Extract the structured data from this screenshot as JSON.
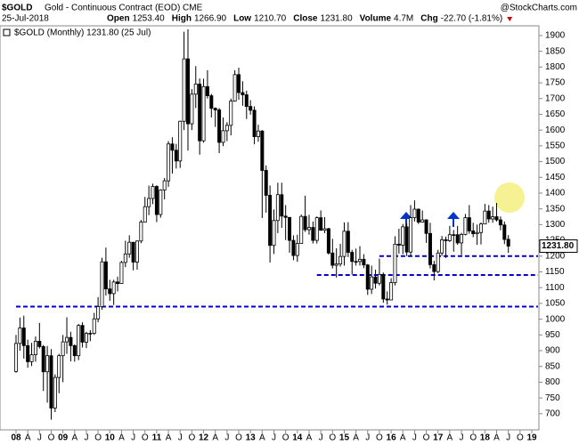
{
  "header": {
    "symbol": "$GOLD",
    "name": "Gold - Continuous Contract (EOD) CME",
    "watermark": "@StockCharts.com",
    "date": "25-Jul-2018",
    "stats": [
      {
        "label": "Open",
        "value": "1253.40"
      },
      {
        "label": "High",
        "value": "1266.90"
      },
      {
        "label": "Low",
        "value": "1210.70"
      },
      {
        "label": "Close",
        "value": "1231.80"
      },
      {
        "label": "Volume",
        "value": "4.7M"
      },
      {
        "label": "Chg",
        "value": "-22.70 (-1.81%)"
      }
    ]
  },
  "chart_data": {
    "type": "candlestick",
    "legend": "$GOLD (Monthly) 1231.80 (25 Jul)",
    "last_label": "1231.80",
    "xlim": [
      "2008-01",
      "2019-01"
    ],
    "ylim": [
      660,
      1945
    ],
    "yticks": [
      700,
      750,
      800,
      850,
      900,
      950,
      1000,
      1050,
      1100,
      1150,
      1200,
      1250,
      1300,
      1350,
      1400,
      1450,
      1500,
      1550,
      1600,
      1650,
      1700,
      1750,
      1800,
      1850,
      1900
    ],
    "xticks": [
      {
        "value": "2008-01",
        "label": "08"
      },
      {
        "value": "2008-04",
        "label": "A"
      },
      {
        "value": "2008-07",
        "label": "J"
      },
      {
        "value": "2008-10",
        "label": "O"
      },
      {
        "value": "2009-01",
        "label": "09"
      },
      {
        "value": "2009-04",
        "label": "A"
      },
      {
        "value": "2009-07",
        "label": "J"
      },
      {
        "value": "2009-10",
        "label": "O"
      },
      {
        "value": "2010-01",
        "label": "10"
      },
      {
        "value": "2010-04",
        "label": "A"
      },
      {
        "value": "2010-07",
        "label": "J"
      },
      {
        "value": "2010-10",
        "label": "O"
      },
      {
        "value": "2011-01",
        "label": "11"
      },
      {
        "value": "2011-04",
        "label": "A"
      },
      {
        "value": "2011-07",
        "label": "J"
      },
      {
        "value": "2011-10",
        "label": "O"
      },
      {
        "value": "2012-01",
        "label": "12"
      },
      {
        "value": "2012-04",
        "label": "A"
      },
      {
        "value": "2012-07",
        "label": "J"
      },
      {
        "value": "2012-10",
        "label": "O"
      },
      {
        "value": "2013-01",
        "label": "13"
      },
      {
        "value": "2013-04",
        "label": "A"
      },
      {
        "value": "2013-07",
        "label": "J"
      },
      {
        "value": "2013-10",
        "label": "O"
      },
      {
        "value": "2014-01",
        "label": "14"
      },
      {
        "value": "2014-04",
        "label": "A"
      },
      {
        "value": "2014-07",
        "label": "J"
      },
      {
        "value": "2014-10",
        "label": "O"
      },
      {
        "value": "2015-01",
        "label": "15"
      },
      {
        "value": "2015-04",
        "label": "A"
      },
      {
        "value": "2015-07",
        "label": "J"
      },
      {
        "value": "2015-10",
        "label": "O"
      },
      {
        "value": "2016-01",
        "label": "16"
      },
      {
        "value": "2016-04",
        "label": "A"
      },
      {
        "value": "2016-07",
        "label": "J"
      },
      {
        "value": "2016-10",
        "label": "O"
      },
      {
        "value": "2017-01",
        "label": "17"
      },
      {
        "value": "2017-04",
        "label": "A"
      },
      {
        "value": "2017-07",
        "label": "J"
      },
      {
        "value": "2017-10",
        "label": "O"
      },
      {
        "value": "2018-01",
        "label": "18"
      },
      {
        "value": "2018-04",
        "label": "A"
      },
      {
        "value": "2018-07",
        "label": "J"
      },
      {
        "value": "2018-10",
        "label": "O"
      },
      {
        "value": "2019-01",
        "label": "19"
      }
    ],
    "levels": [
      {
        "value": 1040,
        "start": "2008-01"
      },
      {
        "value": 1140,
        "start": "2014-06"
      },
      {
        "value": 1200,
        "start": "2015-10"
      }
    ],
    "level_color": "#0000cc",
    "up_color": "#ffffff",
    "down_color": "#000000",
    "x": [
      "2008-01",
      "2008-02",
      "2008-03",
      "2008-04",
      "2008-05",
      "2008-06",
      "2008-07",
      "2008-08",
      "2008-09",
      "2008-10",
      "2008-11",
      "2008-12",
      "2009-01",
      "2009-02",
      "2009-03",
      "2009-04",
      "2009-05",
      "2009-06",
      "2009-07",
      "2009-08",
      "2009-09",
      "2009-10",
      "2009-11",
      "2009-12",
      "2010-01",
      "2010-02",
      "2010-03",
      "2010-04",
      "2010-05",
      "2010-06",
      "2010-07",
      "2010-08",
      "2010-09",
      "2010-10",
      "2010-11",
      "2010-12",
      "2011-01",
      "2011-02",
      "2011-03",
      "2011-04",
      "2011-05",
      "2011-06",
      "2011-07",
      "2011-08",
      "2011-09",
      "2011-10",
      "2011-11",
      "2011-12",
      "2012-01",
      "2012-02",
      "2012-03",
      "2012-04",
      "2012-05",
      "2012-06",
      "2012-07",
      "2012-08",
      "2012-09",
      "2012-10",
      "2012-11",
      "2012-12",
      "2013-01",
      "2013-02",
      "2013-03",
      "2013-04",
      "2013-05",
      "2013-06",
      "2013-07",
      "2013-08",
      "2013-09",
      "2013-10",
      "2013-11",
      "2013-12",
      "2014-01",
      "2014-02",
      "2014-03",
      "2014-04",
      "2014-05",
      "2014-06",
      "2014-07",
      "2014-08",
      "2014-09",
      "2014-10",
      "2014-11",
      "2014-12",
      "2015-01",
      "2015-02",
      "2015-03",
      "2015-04",
      "2015-05",
      "2015-06",
      "2015-07",
      "2015-08",
      "2015-09",
      "2015-10",
      "2015-11",
      "2015-12",
      "2016-01",
      "2016-02",
      "2016-03",
      "2016-04",
      "2016-05",
      "2016-06",
      "2016-07",
      "2016-08",
      "2016-09",
      "2016-10",
      "2016-11",
      "2016-12",
      "2017-01",
      "2017-02",
      "2017-03",
      "2017-04",
      "2017-05",
      "2017-06",
      "2017-07",
      "2017-08",
      "2017-09",
      "2017-10",
      "2017-11",
      "2017-12",
      "2018-01",
      "2018-02",
      "2018-03",
      "2018-04",
      "2018-05",
      "2018-06",
      "2018-07"
    ],
    "open": [
      834,
      923,
      972,
      916,
      865,
      887,
      930,
      913,
      833,
      884,
      718,
      815,
      884,
      928,
      942,
      916,
      884,
      980,
      927,
      955,
      955,
      1001,
      1040,
      1182,
      1096,
      1081,
      1118,
      1113,
      1180,
      1207,
      1244,
      1181,
      1248,
      1308,
      1357,
      1383,
      1421,
      1332,
      1410,
      1439,
      1556,
      1536,
      1502,
      1628,
      1826,
      1620,
      1714,
      1746,
      1566,
      1738,
      1709,
      1669,
      1664,
      1561,
      1598,
      1615,
      1692,
      1776,
      1719,
      1712,
      1675,
      1663,
      1579,
      1597,
      1472,
      1393,
      1234,
      1313,
      1395,
      1327,
      1323,
      1250,
      1202,
      1240,
      1326,
      1284,
      1291,
      1250,
      1322,
      1282,
      1287,
      1210,
      1171,
      1175,
      1199,
      1279,
      1212,
      1183,
      1183,
      1190,
      1172,
      1095,
      1134,
      1114,
      1142,
      1064,
      1061,
      1116,
      1238,
      1235,
      1293,
      1213,
      1322,
      1349,
      1308,
      1315,
      1272,
      1173,
      1151,
      1210,
      1252,
      1249,
      1268,
      1268,
      1242,
      1269,
      1322,
      1280,
      1271,
      1275,
      1302,
      1343,
      1318,
      1325,
      1315,
      1299,
      1253.4
    ],
    "high": [
      950,
      1005,
      1011,
      935,
      925,
      945,
      988,
      918,
      915,
      905,
      825,
      890,
      950,
      1006,
      960,
      920,
      985,
      990,
      960,
      965,
      1020,
      1070,
      1195,
      1227,
      1125,
      1125,
      1135,
      1185,
      1249,
      1266,
      1245,
      1250,
      1315,
      1388,
      1424,
      1430,
      1425,
      1412,
      1448,
      1565,
      1577,
      1556,
      1630,
      1912,
      1920,
      1730,
      1803,
      1764,
      1763,
      1790,
      1715,
      1672,
      1670,
      1640,
      1625,
      1700,
      1790,
      1798,
      1755,
      1725,
      1695,
      1675,
      1617,
      1600,
      1488,
      1424,
      1348,
      1433,
      1433,
      1362,
      1323,
      1266,
      1268,
      1332,
      1392,
      1331,
      1310,
      1326,
      1345,
      1324,
      1290,
      1255,
      1225,
      1239,
      1307,
      1308,
      1220,
      1224,
      1232,
      1206,
      1175,
      1170,
      1157,
      1192,
      1148,
      1088,
      1130,
      1263,
      1287,
      1302,
      1304,
      1362,
      1377,
      1351,
      1345,
      1317,
      1306,
      1185,
      1220,
      1264,
      1262,
      1296,
      1283,
      1296,
      1274,
      1334,
      1362,
      1306,
      1300,
      1307,
      1366,
      1362,
      1357,
      1369,
      1326,
      1310,
      1266.9
    ],
    "low": [
      830,
      900,
      875,
      846,
      851,
      865,
      907,
      772,
      735,
      681,
      705,
      765,
      800,
      890,
      866,
      865,
      870,
      910,
      908,
      930,
      950,
      990,
      1030,
      1075,
      1058,
      1045,
      1088,
      1112,
      1165,
      1195,
      1155,
      1157,
      1241,
      1311,
      1330,
      1365,
      1308,
      1322,
      1380,
      1420,
      1462,
      1478,
      1480,
      1600,
      1535,
      1600,
      1670,
      1522,
      1560,
      1700,
      1640,
      1610,
      1527,
      1549,
      1565,
      1583,
      1690,
      1696,
      1677,
      1635,
      1649,
      1555,
      1563,
      1321,
      1338,
      1180,
      1207,
      1273,
      1290,
      1251,
      1211,
      1187,
      1182,
      1240,
      1277,
      1268,
      1240,
      1240,
      1281,
      1273,
      1205,
      1161,
      1132,
      1167,
      1170,
      1197,
      1142,
      1170,
      1170,
      1162,
      1077,
      1080,
      1097,
      1107,
      1052,
      1046,
      1061,
      1107,
      1208,
      1206,
      1200,
      1200,
      1310,
      1302,
      1306,
      1242,
      1161,
      1123,
      1146,
      1201,
      1194,
      1245,
      1214,
      1236,
      1204,
      1266,
      1271,
      1260,
      1236,
      1237,
      1302,
      1306,
      1306,
      1310,
      1282,
      1238,
      1210.7
    ],
    "close": [
      923,
      972,
      916,
      865,
      887,
      930,
      913,
      833,
      884,
      718,
      815,
      884,
      928,
      942,
      916,
      884,
      980,
      927,
      955,
      955,
      1001,
      1040,
      1182,
      1096,
      1081,
      1118,
      1113,
      1180,
      1207,
      1244,
      1181,
      1248,
      1308,
      1357,
      1383,
      1421,
      1332,
      1410,
      1439,
      1556,
      1536,
      1502,
      1628,
      1826,
      1620,
      1714,
      1746,
      1566,
      1738,
      1709,
      1669,
      1664,
      1561,
      1598,
      1615,
      1692,
      1776,
      1719,
      1712,
      1675,
      1663,
      1579,
      1597,
      1472,
      1393,
      1234,
      1313,
      1395,
      1327,
      1323,
      1250,
      1202,
      1240,
      1326,
      1284,
      1291,
      1250,
      1322,
      1282,
      1287,
      1210,
      1171,
      1175,
      1199,
      1279,
      1212,
      1183,
      1183,
      1190,
      1172,
      1095,
      1134,
      1114,
      1142,
      1064,
      1061,
      1116,
      1238,
      1235,
      1293,
      1213,
      1322,
      1349,
      1308,
      1315,
      1272,
      1173,
      1151,
      1210,
      1252,
      1249,
      1268,
      1268,
      1242,
      1269,
      1322,
      1280,
      1271,
      1275,
      1302,
      1343,
      1318,
      1325,
      1315,
      1299,
      1253,
      1231.8
    ]
  }
}
